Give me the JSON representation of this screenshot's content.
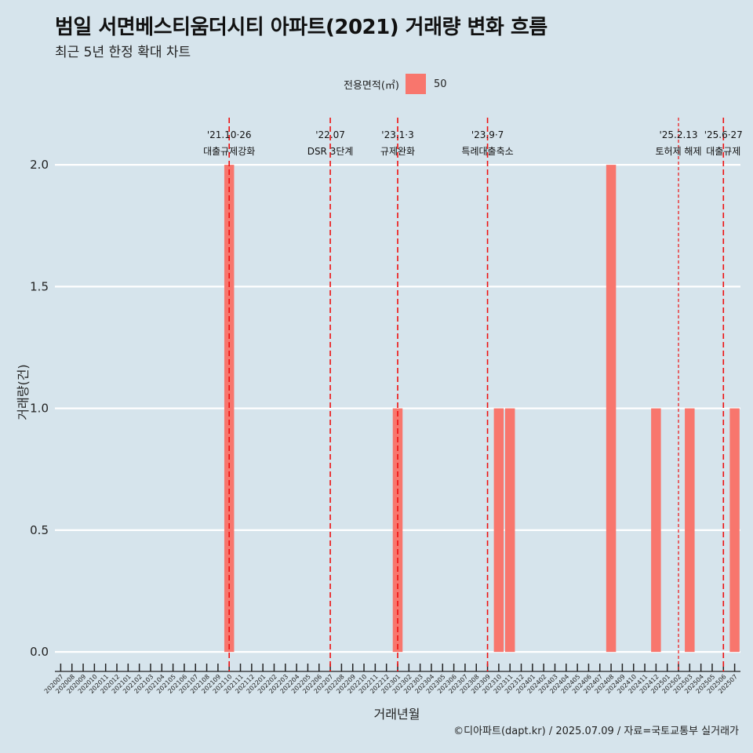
{
  "header": {
    "title": "범일 서면베스티움더시티 아파트(2021) 거래량 변화 흐름",
    "subtitle": "최근 5년 한정 확대 차트"
  },
  "legend": {
    "title": "전용면적(㎡)",
    "items": [
      {
        "label": "50",
        "color": "#f8766d"
      }
    ]
  },
  "caption": "©디아파트(dapt.kr) / 2025.07.09 / 자료=국토교통부 실거래가",
  "chart_data": {
    "type": "bar",
    "title": "범일 서면베스티움더시티 아파트(2021) 거래량 변화 흐름",
    "subtitle": "최근 5년 한정 확대 차트",
    "xlabel": "거래년월",
    "ylabel": "거래량(건)",
    "ylim": [
      -0.08,
      2.2
    ],
    "yticks": [
      0.0,
      0.5,
      1.0,
      1.5,
      2.0
    ],
    "ytick_labels": [
      "0.0",
      "0.5",
      "1.0",
      "1.5",
      "2.0"
    ],
    "grid": true,
    "legend_position": "top",
    "categories": [
      "202007",
      "202008",
      "202009",
      "202010",
      "202011",
      "202012",
      "202101",
      "202102",
      "202103",
      "202104",
      "202105",
      "202106",
      "202107",
      "202108",
      "202109",
      "202110",
      "202111",
      "202112",
      "202201",
      "202202",
      "202203",
      "202204",
      "202205",
      "202206",
      "202207",
      "202208",
      "202209",
      "202210",
      "202211",
      "202212",
      "202301",
      "202302",
      "202303",
      "202304",
      "202305",
      "202306",
      "202307",
      "202308",
      "202309",
      "202310",
      "202311",
      "202312",
      "202401",
      "202402",
      "202403",
      "202404",
      "202405",
      "202406",
      "202407",
      "202408",
      "202409",
      "202410",
      "202411",
      "202412",
      "202501",
      "202502",
      "202503",
      "202504",
      "202505",
      "202506",
      "202507"
    ],
    "tick_labels": [
      "202007",
      "202008",
      "202009",
      "202010",
      "202011",
      "202012",
      "202101",
      "202102",
      "202103",
      "202104",
      "202105",
      "202106",
      "202107",
      "202108",
      "202109",
      "202110",
      "202111",
      "202112",
      "202201",
      "202202",
      "202203",
      "202204",
      "202205",
      "202206",
      "202207",
      "202208",
      "202209",
      "202210",
      "202211",
      "202212",
      "202301",
      "202302",
      "202303",
      "202304",
      "202305",
      "202306",
      "202307",
      "202308",
      "202309",
      "202310",
      "202311",
      "202312",
      "202401",
      "202402",
      "202403",
      "202404",
      "202405",
      "202406",
      "202407",
      "202408",
      "202409",
      "202410",
      "202411",
      "202412",
      "202501",
      "202502",
      "202503",
      "202504",
      "202505",
      "202506",
      "202507"
    ],
    "series": [
      {
        "name": "50",
        "color": "#f8766d",
        "values": [
          0,
          0,
          0,
          0,
          0,
          0,
          0,
          0,
          0,
          0,
          0,
          0,
          0,
          0,
          0,
          2,
          0,
          0,
          0,
          0,
          0,
          0,
          0,
          0,
          0,
          0,
          0,
          0,
          0,
          0,
          1,
          0,
          0,
          0,
          0,
          0,
          0,
          0,
          0,
          1,
          1,
          0,
          0,
          0,
          0,
          0,
          0,
          0,
          0,
          2,
          0,
          0,
          0,
          1,
          0,
          0,
          1,
          0,
          0,
          0,
          1
        ]
      }
    ],
    "events": [
      {
        "month": "202110",
        "date": "'21.10·26",
        "label": "대출규제강화",
        "dash": "long"
      },
      {
        "month": "202207",
        "date": "'22.07",
        "label": "DSR 3단계",
        "dash": "long"
      },
      {
        "month": "202301",
        "date": "'23.1·3",
        "label": "규제완화",
        "dash": "long"
      },
      {
        "month": "202309",
        "date": "'23.9·7",
        "label": "특례대출축소",
        "dash": "long"
      },
      {
        "month": "202502",
        "date": "'25.2.13",
        "label": "토허제 해제",
        "dash": "short"
      },
      {
        "month": "202506",
        "date": "'25.6·27",
        "label": "대출규제",
        "dash": "long"
      }
    ]
  }
}
